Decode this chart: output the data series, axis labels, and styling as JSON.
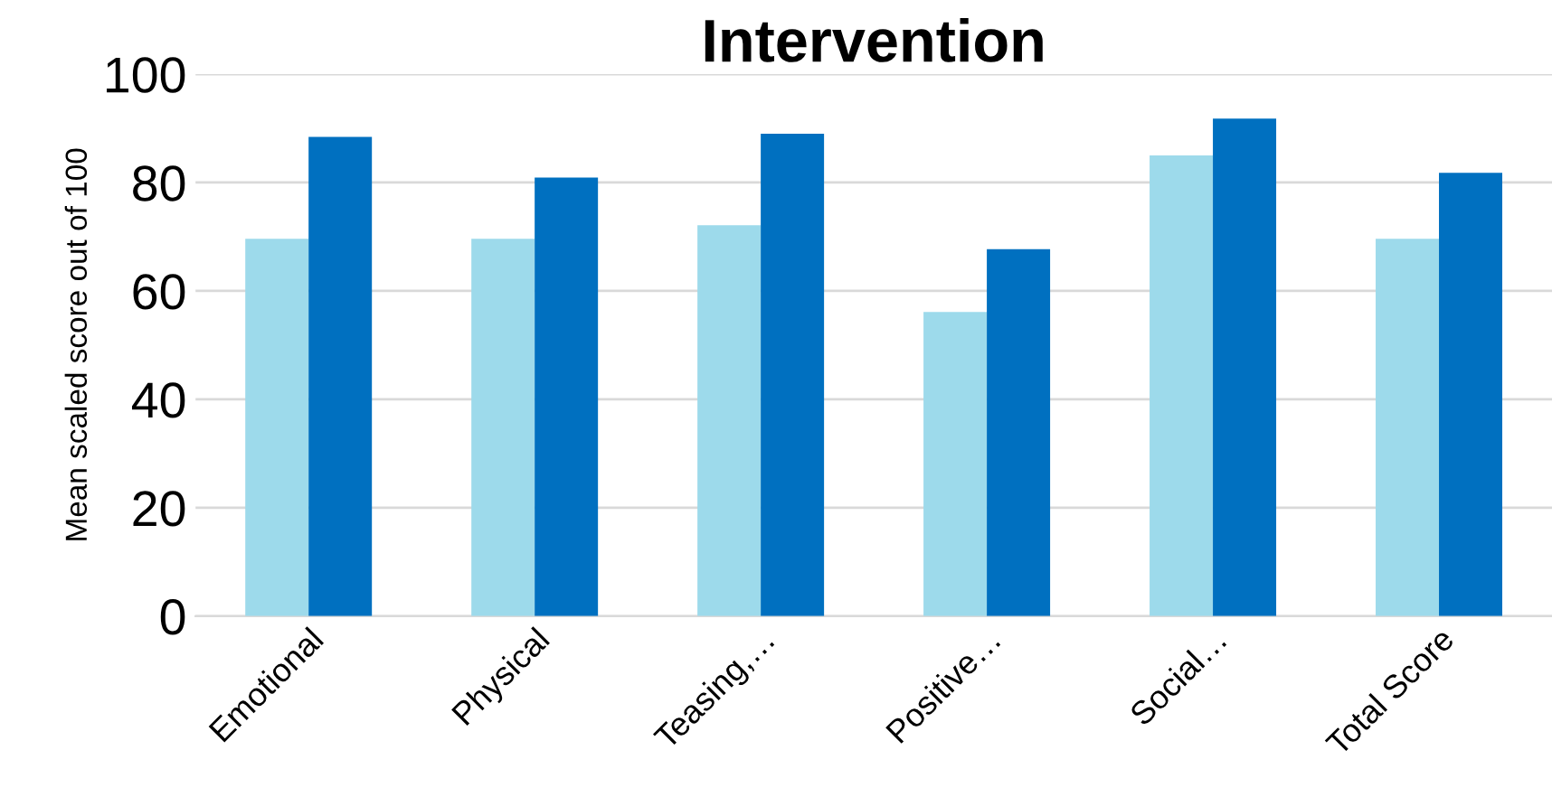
{
  "chart_data": {
    "type": "bar",
    "title": "Intervention",
    "ylabel": "Mean scaled score out of 100",
    "categories": [
      "Emotional",
      "Physical",
      "Teasing,…",
      "Positive…",
      "Social…",
      "Total Score"
    ],
    "series": [
      {
        "color": "#9ddaeb",
        "values": [
          69.6,
          69.6,
          72.1,
          56.1,
          85.0,
          69.6
        ]
      },
      {
        "color": "#0070c0",
        "values": [
          88.4,
          80.9,
          89.0,
          67.7,
          91.8,
          81.8
        ]
      }
    ],
    "ylim": [
      0,
      100
    ],
    "yticks": [
      0,
      20,
      40,
      60,
      80,
      100
    ],
    "grid": "y",
    "legend": false
  }
}
